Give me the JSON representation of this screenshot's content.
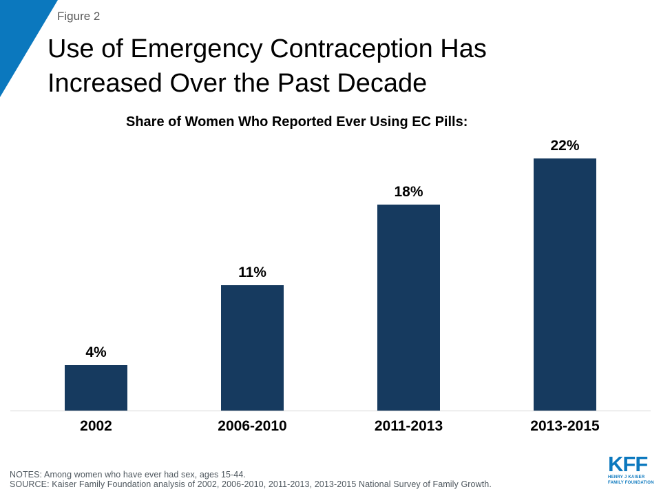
{
  "header": {
    "figure_label": "Figure 2",
    "title_lines": [
      "Use of Emergency Contraception Has",
      "Increased Over the Past Decade"
    ]
  },
  "chart_data": {
    "type": "bar",
    "title": "Share of Women Who Reported Ever Using EC Pills:",
    "categories": [
      "2002",
      "2006-2010",
      "2011-2013",
      "2013-2015"
    ],
    "values": [
      4,
      11,
      18,
      22
    ],
    "value_labels": [
      "4%",
      "11%",
      "18%",
      "22%"
    ],
    "xlabel": "",
    "ylabel": "",
    "ylim": [
      0,
      25
    ],
    "grid": false,
    "legend": false,
    "bar_color": "#163A5F"
  },
  "footer": {
    "notes": "NOTES: Among women who have ever had sex, ages 15-44.",
    "source": "SOURCE: Kaiser Family Foundation analysis of 2002, 2006-2010, 2011-2013, 2013-2015 National Survey of Family Growth.",
    "logo": {
      "text": "KFF",
      "sub_line1": "HENRY J KAISER",
      "sub_line2": "FAMILY FOUNDATION"
    }
  },
  "colors": {
    "bar": "#163A5F",
    "accent_blue": "#0B78BE",
    "figure_label_gray": "#595959",
    "notes_gray": "#4E575E",
    "baseline_gray": "#D6D6D6"
  }
}
